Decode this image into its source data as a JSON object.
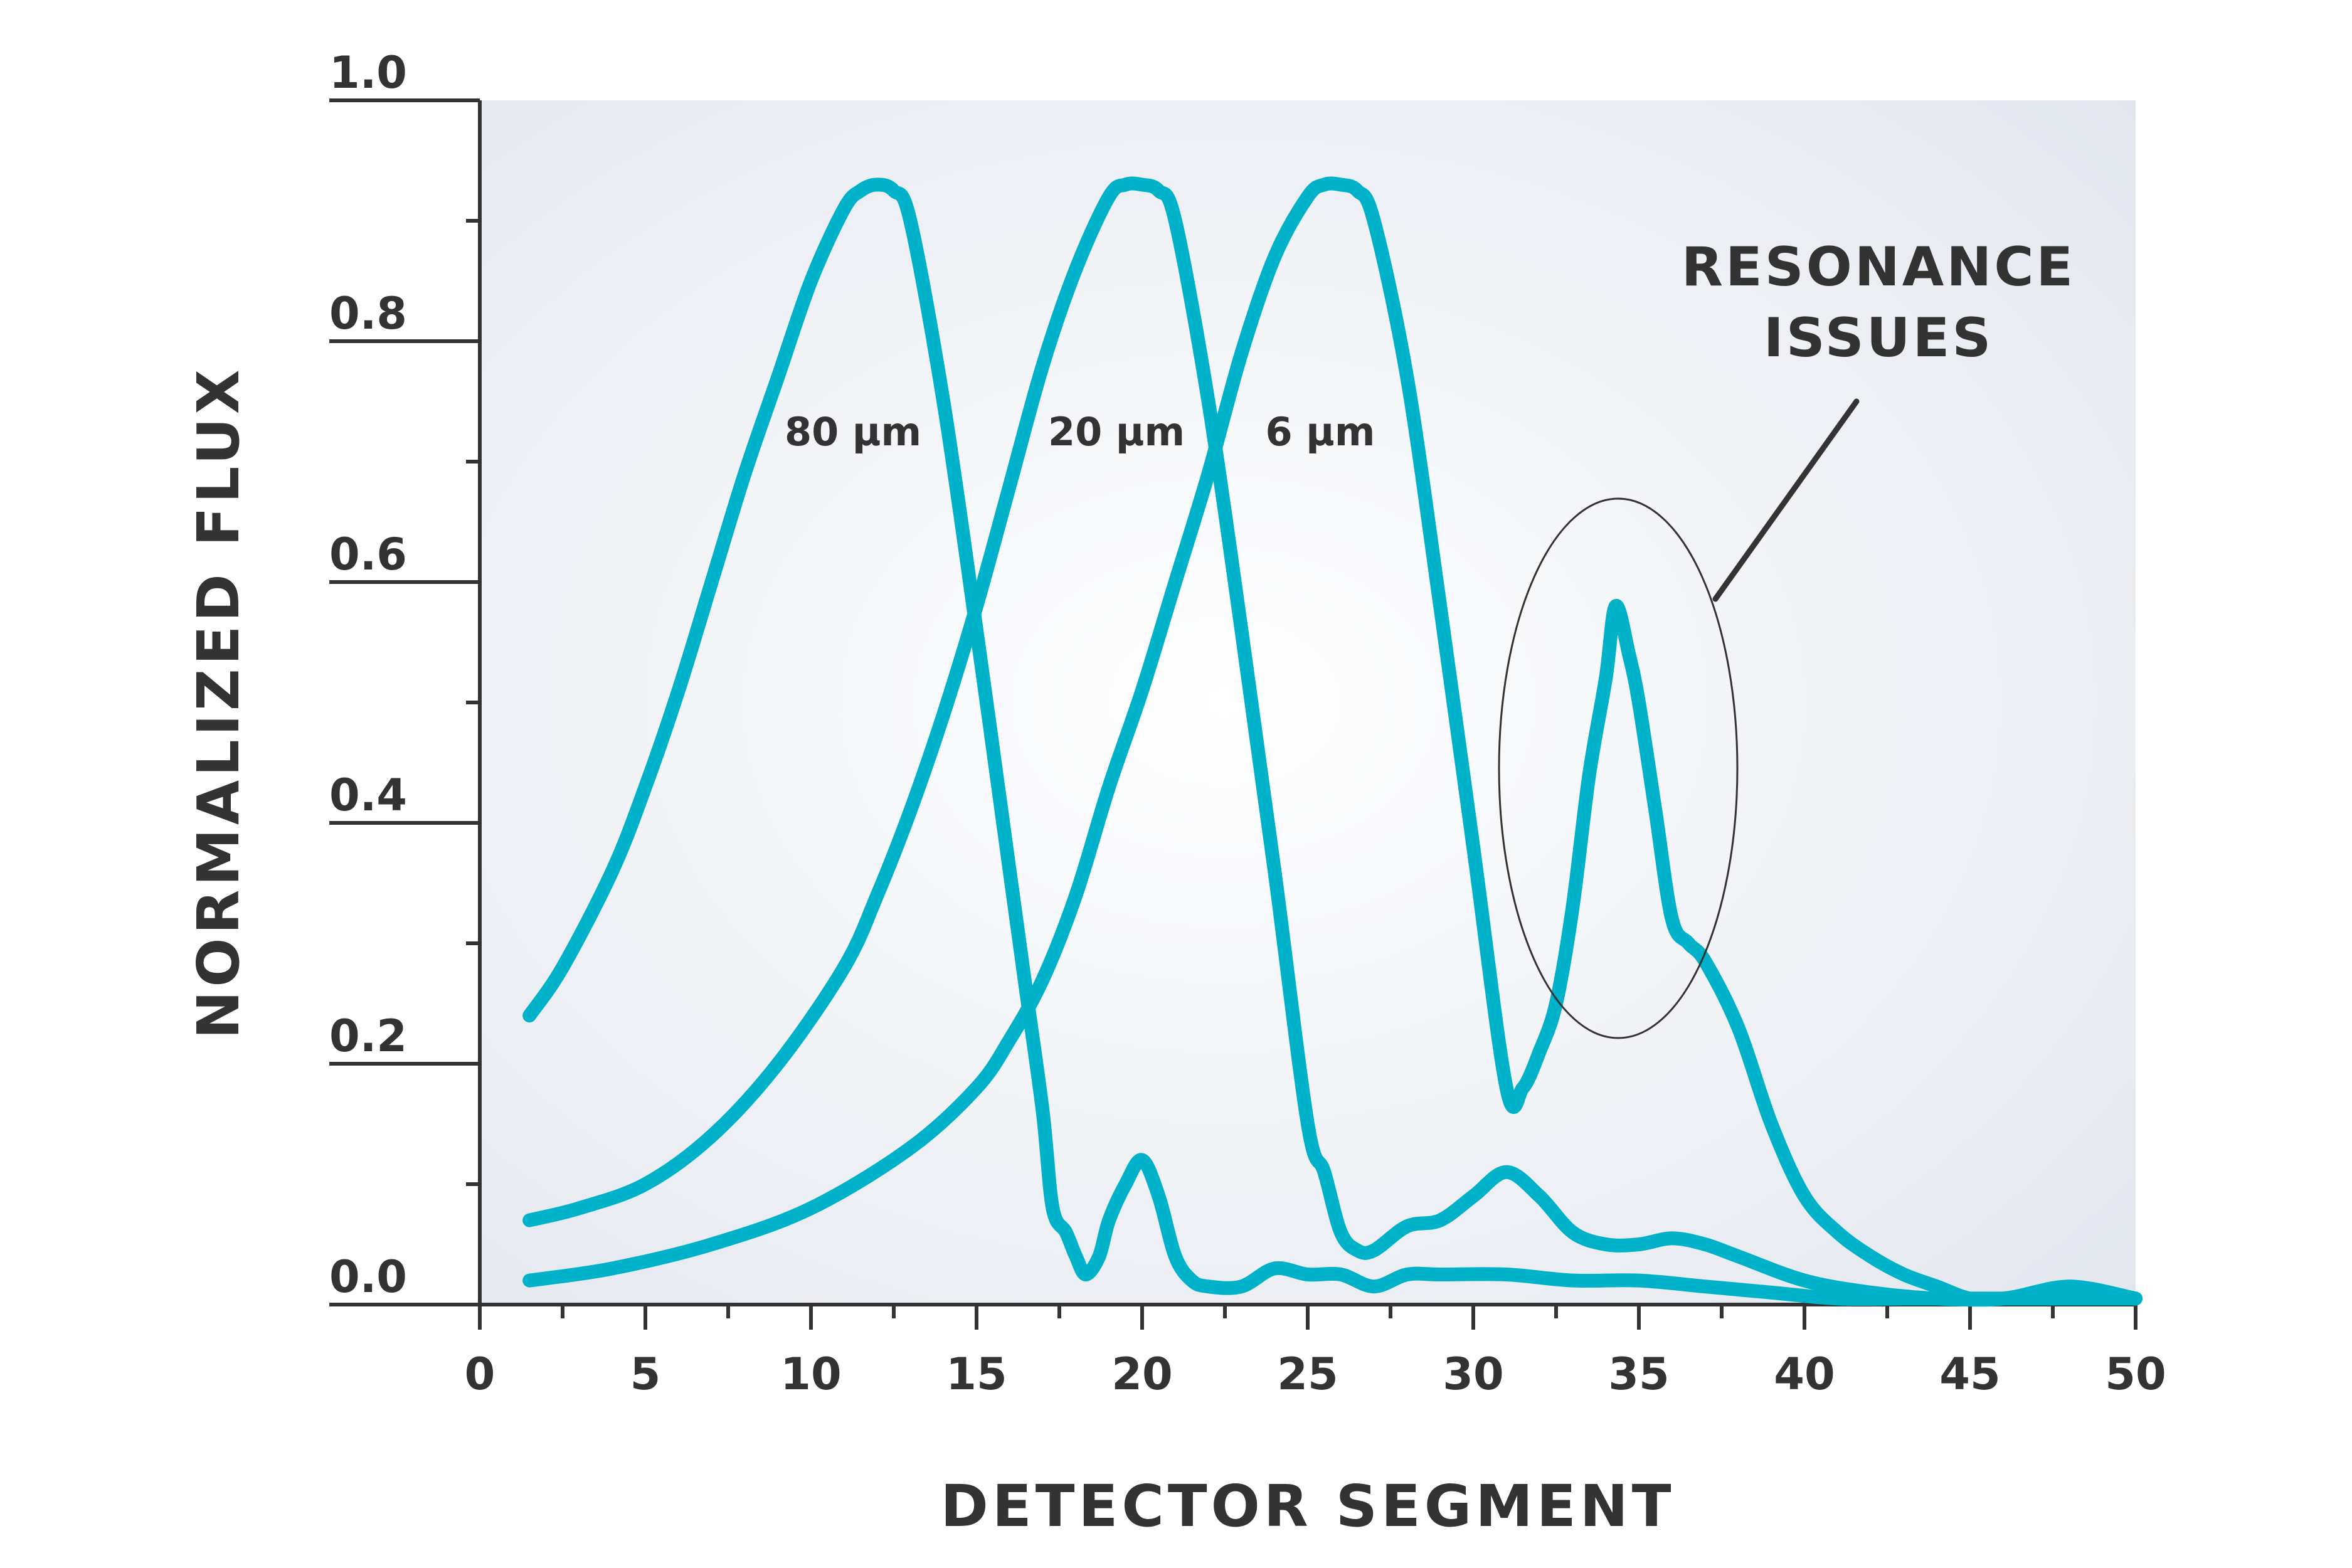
{
  "chart_data": {
    "type": "line",
    "xlabel": "DETECTOR SEGMENT",
    "ylabel": "NORMALIZED FLUX",
    "xlim": [
      0,
      50
    ],
    "ylim": [
      0,
      1.0
    ],
    "x_ticks": [
      "0",
      "5",
      "10",
      "15",
      "20",
      "25",
      "30",
      "35",
      "40",
      "45",
      "50"
    ],
    "y_ticks": [
      "0.0",
      "0.2",
      "0.4",
      "0.6",
      "0.8",
      "1.0"
    ],
    "grid": false,
    "line_color": "#00B2C9",
    "series": [
      {
        "name": "80 µm",
        "points": [
          [
            1.5,
            0.24
          ],
          [
            2.5,
            0.28
          ],
          [
            4,
            0.36
          ],
          [
            5,
            0.43
          ],
          [
            6,
            0.51
          ],
          [
            7,
            0.6
          ],
          [
            8,
            0.69
          ],
          [
            9,
            0.77
          ],
          [
            10,
            0.85
          ],
          [
            11,
            0.91
          ],
          [
            11.5,
            0.925
          ],
          [
            12,
            0.93
          ],
          [
            12.5,
            0.925
          ],
          [
            13,
            0.9
          ],
          [
            14,
            0.75
          ],
          [
            15,
            0.56
          ],
          [
            16,
            0.36
          ],
          [
            16.5,
            0.26
          ],
          [
            17,
            0.16
          ],
          [
            17.3,
            0.08
          ],
          [
            17.7,
            0.06
          ],
          [
            18,
            0.04
          ],
          [
            18.3,
            0.025
          ],
          [
            18.7,
            0.04
          ],
          [
            19,
            0.07
          ],
          [
            19.5,
            0.1
          ],
          [
            20,
            0.12
          ],
          [
            20.5,
            0.09
          ],
          [
            21,
            0.04
          ],
          [
            21.5,
            0.02
          ],
          [
            22,
            0.015
          ],
          [
            23,
            0.015
          ],
          [
            24,
            0.03
          ],
          [
            25,
            0.025
          ],
          [
            26,
            0.025
          ],
          [
            27,
            0.015
          ],
          [
            28,
            0.025
          ],
          [
            29,
            0.025
          ],
          [
            31,
            0.025
          ],
          [
            33,
            0.02
          ],
          [
            35,
            0.02
          ],
          [
            37,
            0.015
          ],
          [
            39,
            0.01
          ],
          [
            41,
            0.005
          ],
          [
            43,
            0.005
          ],
          [
            45,
            0.005
          ],
          [
            47,
            0.005
          ],
          [
            50,
            0.005
          ]
        ]
      },
      {
        "name": "20 µm",
        "points": [
          [
            1.5,
            0.07
          ],
          [
            3,
            0.08
          ],
          [
            5,
            0.1
          ],
          [
            7,
            0.14
          ],
          [
            9,
            0.2
          ],
          [
            11,
            0.28
          ],
          [
            12,
            0.34
          ],
          [
            13,
            0.41
          ],
          [
            14,
            0.49
          ],
          [
            15,
            0.58
          ],
          [
            16,
            0.68
          ],
          [
            17,
            0.78
          ],
          [
            18,
            0.86
          ],
          [
            19,
            0.92
          ],
          [
            19.5,
            0.93
          ],
          [
            20,
            0.93
          ],
          [
            20.5,
            0.925
          ],
          [
            21,
            0.9
          ],
          [
            22,
            0.75
          ],
          [
            23,
            0.56
          ],
          [
            24,
            0.36
          ],
          [
            25,
            0.15
          ],
          [
            25.5,
            0.11
          ],
          [
            26,
            0.06
          ],
          [
            26.5,
            0.045
          ],
          [
            27,
            0.045
          ],
          [
            28,
            0.065
          ],
          [
            29,
            0.07
          ],
          [
            30,
            0.09
          ],
          [
            31,
            0.11
          ],
          [
            32,
            0.09
          ],
          [
            33,
            0.06
          ],
          [
            34,
            0.05
          ],
          [
            35,
            0.05
          ],
          [
            36,
            0.055
          ],
          [
            37,
            0.05
          ],
          [
            38,
            0.04
          ],
          [
            40,
            0.02
          ],
          [
            42,
            0.01
          ],
          [
            44,
            0.005
          ],
          [
            46,
            0.005
          ],
          [
            48,
            0.015
          ],
          [
            50,
            0.005
          ]
        ]
      },
      {
        "name": "6 µm",
        "points": [
          [
            1.5,
            0.02
          ],
          [
            4,
            0.03
          ],
          [
            7,
            0.05
          ],
          [
            10,
            0.08
          ],
          [
            13,
            0.13
          ],
          [
            15,
            0.18
          ],
          [
            16,
            0.22
          ],
          [
            17,
            0.27
          ],
          [
            18,
            0.34
          ],
          [
            19,
            0.43
          ],
          [
            20,
            0.51
          ],
          [
            21,
            0.6
          ],
          [
            22,
            0.69
          ],
          [
            23,
            0.79
          ],
          [
            24,
            0.87
          ],
          [
            25,
            0.92
          ],
          [
            25.5,
            0.93
          ],
          [
            26,
            0.93
          ],
          [
            26.5,
            0.925
          ],
          [
            27,
            0.9
          ],
          [
            28,
            0.77
          ],
          [
            29,
            0.58
          ],
          [
            30,
            0.38
          ],
          [
            31,
            0.18
          ],
          [
            31.5,
            0.18
          ],
          [
            32,
            0.21
          ],
          [
            32.5,
            0.25
          ],
          [
            33,
            0.33
          ],
          [
            33.5,
            0.44
          ],
          [
            34,
            0.52
          ],
          [
            34.3,
            0.58
          ],
          [
            34.7,
            0.54
          ],
          [
            35,
            0.5
          ],
          [
            35.5,
            0.41
          ],
          [
            36,
            0.32
          ],
          [
            36.5,
            0.3
          ],
          [
            37,
            0.285
          ],
          [
            38,
            0.23
          ],
          [
            39,
            0.15
          ],
          [
            40,
            0.09
          ],
          [
            41,
            0.06
          ],
          [
            42,
            0.04
          ],
          [
            43,
            0.025
          ],
          [
            44,
            0.015
          ],
          [
            45,
            0.005
          ],
          [
            46,
            0.005
          ],
          [
            47,
            0.01
          ],
          [
            48,
            0.015
          ],
          [
            49,
            0.01
          ],
          [
            50,
            0.005
          ]
        ]
      }
    ],
    "annotations": [
      {
        "lines": [
          "RESONANCE",
          "ISSUES"
        ],
        "target": "6 µm secondary peak near segment 34"
      }
    ]
  }
}
